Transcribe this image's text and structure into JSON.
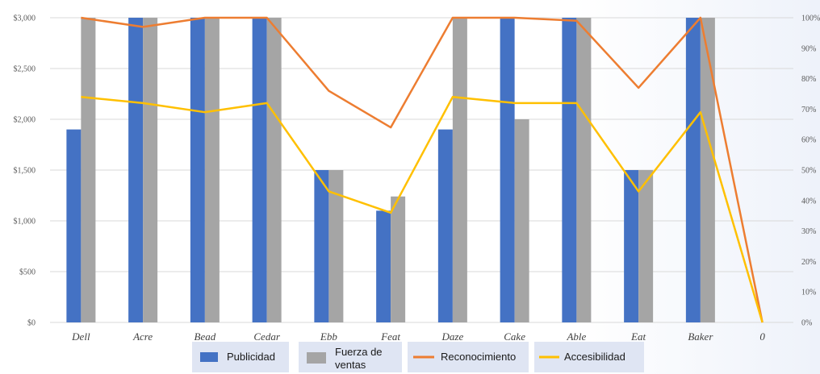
{
  "chart_data": {
    "type": "bar",
    "categories": [
      "Dell",
      "Acre",
      "Bead",
      "Cedar",
      "Ebb",
      "Feat",
      "Daze",
      "Cake",
      "Able",
      "Eat",
      "Baker",
      "0"
    ],
    "series": [
      {
        "name": "Publicidad",
        "kind": "bar",
        "axis": "left",
        "color": "#4472c4",
        "values": [
          1900,
          3000,
          3000,
          3000,
          1500,
          1100,
          1900,
          3000,
          3000,
          1500,
          3000,
          0
        ]
      },
      {
        "name": "Fuerza de ventas",
        "kind": "bar",
        "axis": "left",
        "color": "#a5a5a5",
        "values": [
          3000,
          3000,
          3000,
          3000,
          1500,
          1240,
          3000,
          2000,
          3000,
          1500,
          3000,
          0
        ]
      },
      {
        "name": "Reconocimiento",
        "kind": "line",
        "axis": "right",
        "color": "#ed7d31",
        "values": [
          100,
          97,
          100,
          100,
          76,
          64,
          100,
          100,
          99,
          77,
          100,
          0
        ]
      },
      {
        "name": "Accesibilidad",
        "kind": "line",
        "axis": "right",
        "color": "#ffc000",
        "values": [
          74,
          72,
          69,
          72,
          43,
          36,
          74,
          72,
          72,
          43,
          69,
          0
        ]
      }
    ],
    "y_left": {
      "ylim": [
        0,
        3000
      ],
      "tick_labels": [
        "$0",
        "$500",
        "$1,000",
        "$1,500",
        "$2,000",
        "$2,500",
        "$3,000"
      ],
      "ticks": [
        0,
        500,
        1000,
        1500,
        2000,
        2500,
        3000
      ]
    },
    "y_right": {
      "ylim": [
        0,
        100
      ],
      "tick_labels": [
        "0%",
        "10%",
        "20%",
        "30%",
        "40%",
        "50%",
        "60%",
        "70%",
        "80%",
        "90%",
        "100%"
      ],
      "ticks": [
        0,
        10,
        20,
        30,
        40,
        50,
        60,
        70,
        80,
        90,
        100
      ]
    },
    "grid": true,
    "legend_position": "bottom",
    "legend": [
      {
        "label": "Publicidad",
        "symbol": "bar",
        "color": "#4472c4"
      },
      {
        "label_lines": [
          "Fuerza de",
          "ventas"
        ],
        "symbol": "bar",
        "color": "#a5a5a5"
      },
      {
        "label": "Reconocimiento",
        "symbol": "line",
        "color": "#ed7d31"
      },
      {
        "label": "Accesibilidad",
        "symbol": "line",
        "color": "#ffc000"
      }
    ]
  }
}
